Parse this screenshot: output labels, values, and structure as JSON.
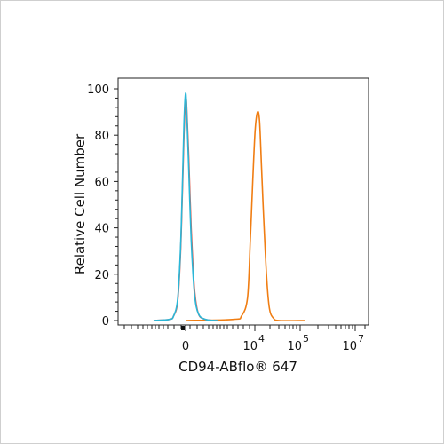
{
  "chart_data": {
    "type": "area",
    "title": "",
    "xlabel": "CD94-ABflo® 647",
    "ylabel": "Relative Cell Number",
    "y_ticks": [
      0,
      20,
      40,
      60,
      80,
      100
    ],
    "ylim": [
      0,
      100
    ],
    "x_ticks": [
      {
        "label": "0",
        "exp": ""
      },
      {
        "label": "10",
        "exp": "4"
      },
      {
        "label": "10",
        "exp": "5"
      },
      {
        "label": "10",
        "exp": "7"
      }
    ],
    "colors": {
      "blue": "#2ab7d8",
      "orange": "#f07d12",
      "red": "#e05a4b"
    },
    "series": [
      {
        "color": "orange",
        "points": [
          [
            0,
            0
          ],
          [
            12,
            0.5
          ],
          [
            14,
            2
          ],
          [
            15.5,
            10
          ],
          [
            16.2,
            35
          ],
          [
            16.8,
            60
          ],
          [
            17.4,
            82
          ],
          [
            18,
            90
          ],
          [
            18.5,
            86
          ],
          [
            19,
            66
          ],
          [
            19.6,
            42
          ],
          [
            20.3,
            18
          ],
          [
            21,
            5
          ],
          [
            22,
            1
          ],
          [
            23.5,
            0
          ],
          [
            30,
            0
          ]
        ]
      },
      {
        "color": "red",
        "points": [
          [
            -8,
            0
          ],
          [
            -4,
            0.5
          ],
          [
            -3,
            2
          ],
          [
            -2,
            8
          ],
          [
            -1.3,
            28
          ],
          [
            -0.8,
            55
          ],
          [
            -0.4,
            80
          ],
          [
            0,
            95
          ],
          [
            0.3,
            92
          ],
          [
            0.8,
            70
          ],
          [
            1.4,
            40
          ],
          [
            2.2,
            14
          ],
          [
            3.2,
            3
          ],
          [
            5,
            0.5
          ],
          [
            8,
            0
          ]
        ]
      },
      {
        "color": "blue",
        "points": [
          [
            -8,
            0
          ],
          [
            -4,
            0.5
          ],
          [
            -3,
            2
          ],
          [
            -2,
            9
          ],
          [
            -1.3,
            30
          ],
          [
            -0.8,
            58
          ],
          [
            -0.4,
            85
          ],
          [
            0,
            98
          ],
          [
            0.3,
            90
          ],
          [
            0.8,
            65
          ],
          [
            1.4,
            35
          ],
          [
            2.2,
            12
          ],
          [
            3.2,
            3
          ],
          [
            5,
            0.5
          ],
          [
            8,
            0
          ]
        ]
      }
    ]
  }
}
